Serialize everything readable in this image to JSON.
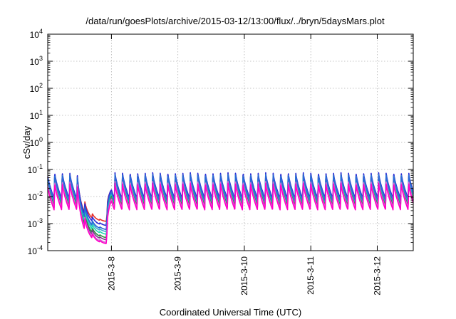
{
  "chart_data": {
    "type": "line",
    "title": "/data/run/goesPlots/archive/2015-03-12/13:00/flux/../bryn/5daysMars.plot",
    "xlabel": "Coordinated Universal Time (UTC)",
    "ylabel": "cSv/day",
    "yscale": "log",
    "ylim": [
      0.0001,
      10000
    ],
    "y_ticks": [
      {
        "base": "10",
        "exp": "-4",
        "value": 0.0001
      },
      {
        "base": "10",
        "exp": "-3",
        "value": 0.001
      },
      {
        "base": "10",
        "exp": "-2",
        "value": 0.01
      },
      {
        "base": "10",
        "exp": "-1",
        "value": 0.1
      },
      {
        "base": "10",
        "exp": "0",
        "value": 1
      },
      {
        "base": "10",
        "exp": "1",
        "value": 10
      },
      {
        "base": "10",
        "exp": "2",
        "value": 100
      },
      {
        "base": "10",
        "exp": "3",
        "value": 1000
      },
      {
        "base": "10",
        "exp": "4",
        "value": 10000
      }
    ],
    "xlim": [
      "2015-03-07 01:00",
      "2015-03-12 13:00"
    ],
    "x_ticks": [
      {
        "label": "2015-3-8",
        "value": "2015-03-08 00:00"
      },
      {
        "label": "2015-3-9",
        "value": "2015-03-09 00:00"
      },
      {
        "label": "2015-3-10",
        "value": "2015-03-10 00:00"
      },
      {
        "label": "2015-3-11",
        "value": "2015-03-11 00:00"
      },
      {
        "label": "2015-3-12",
        "value": "2015-03-12 00:00"
      }
    ],
    "grid": true,
    "colors": [
      "#e8302a",
      "#2b2bd8",
      "#2c8a3c",
      "#7a3b8a",
      "#3aa8d0",
      "#20d8b0",
      "#2a6ad6",
      "#d86ad8",
      "#ff00c8"
    ],
    "series": [
      {
        "color": "#e8302a",
        "peak": 0.075,
        "trough": 0.0075,
        "dip_min": 0.0012
      },
      {
        "color": "#2b2bd8",
        "peak": 0.08,
        "trough": 0.0085,
        "dip_min": 0.00085
      },
      {
        "color": "#2c8a3c",
        "peak": 0.05,
        "trough": 0.005,
        "dip_min": 0.0003
      },
      {
        "color": "#7a3b8a",
        "peak": 0.042,
        "trough": 0.004,
        "dip_min": 0.00025
      },
      {
        "color": "#3aa8d0",
        "peak": 0.068,
        "trough": 0.007,
        "dip_min": 0.0005
      },
      {
        "color": "#20d8b0",
        "peak": 0.058,
        "trough": 0.006,
        "dip_min": 0.0004
      },
      {
        "color": "#2a6ad6",
        "peak": 0.066,
        "trough": 0.0068,
        "dip_min": 0.0006
      },
      {
        "color": "#d86ad8",
        "peak": 0.038,
        "trough": 0.0038,
        "dip_min": 0.0002
      },
      {
        "color": "#ff00c8",
        "peak": 0.032,
        "trough": 0.0032,
        "dip_min": 0.00018
      }
    ]
  }
}
